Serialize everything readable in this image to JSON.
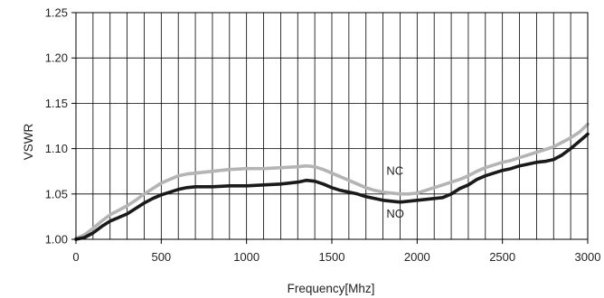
{
  "chart_data": {
    "type": "line",
    "title": "",
    "xlabel": "Frequency[Mhz]",
    "ylabel": "VSWR",
    "xlim": [
      0,
      3000
    ],
    "ylim": [
      1.0,
      1.25
    ],
    "x_ticks": [
      0,
      500,
      1000,
      1500,
      2000,
      2500,
      3000
    ],
    "y_ticks": [
      1.0,
      1.05,
      1.1,
      1.15,
      1.2,
      1.25
    ],
    "x_tick_labels": [
      "0",
      "500",
      "1000",
      "1500",
      "2000",
      "2500",
      "3000"
    ],
    "y_tick_labels": [
      "1.00",
      "1.05",
      "1.10",
      "1.15",
      "1.20",
      "1.25"
    ],
    "grid": true,
    "vertical_grid_step": 100,
    "legend": "none",
    "series": [
      {
        "name": "NC",
        "color": "#b4b4b4",
        "x": [
          0,
          50,
          100,
          150,
          200,
          250,
          300,
          350,
          400,
          450,
          500,
          550,
          600,
          650,
          700,
          800,
          900,
          1000,
          1100,
          1200,
          1300,
          1350,
          1400,
          1450,
          1500,
          1550,
          1600,
          1650,
          1700,
          1750,
          1800,
          1850,
          1900,
          1950,
          2000,
          2050,
          2100,
          2150,
          2200,
          2250,
          2300,
          2350,
          2400,
          2450,
          2500,
          2550,
          2600,
          2650,
          2700,
          2750,
          2800,
          2850,
          2900,
          2950,
          3000
        ],
        "values": [
          1.001,
          1.005,
          1.012,
          1.02,
          1.027,
          1.032,
          1.037,
          1.043,
          1.05,
          1.056,
          1.062,
          1.066,
          1.07,
          1.072,
          1.073,
          1.075,
          1.077,
          1.078,
          1.078,
          1.079,
          1.08,
          1.081,
          1.08,
          1.077,
          1.073,
          1.069,
          1.065,
          1.061,
          1.057,
          1.054,
          1.052,
          1.051,
          1.05,
          1.05,
          1.051,
          1.054,
          1.057,
          1.06,
          1.063,
          1.066,
          1.07,
          1.075,
          1.079,
          1.082,
          1.085,
          1.087,
          1.09,
          1.093,
          1.096,
          1.099,
          1.102,
          1.107,
          1.112,
          1.118,
          1.127
        ]
      },
      {
        "name": "NO",
        "color": "#1a1a1a",
        "x": [
          0,
          50,
          100,
          150,
          200,
          250,
          300,
          350,
          400,
          450,
          500,
          550,
          600,
          650,
          700,
          800,
          900,
          1000,
          1100,
          1200,
          1300,
          1350,
          1400,
          1450,
          1500,
          1550,
          1600,
          1650,
          1700,
          1750,
          1800,
          1850,
          1900,
          1950,
          2000,
          2050,
          2100,
          2150,
          2200,
          2250,
          2300,
          2350,
          2400,
          2450,
          2500,
          2550,
          2600,
          2650,
          2700,
          2750,
          2800,
          2850,
          2900,
          2950,
          3000
        ],
        "values": [
          1.0,
          1.002,
          1.007,
          1.014,
          1.02,
          1.024,
          1.028,
          1.034,
          1.04,
          1.045,
          1.049,
          1.052,
          1.055,
          1.057,
          1.058,
          1.058,
          1.059,
          1.059,
          1.06,
          1.061,
          1.063,
          1.065,
          1.064,
          1.061,
          1.057,
          1.054,
          1.052,
          1.05,
          1.047,
          1.045,
          1.043,
          1.042,
          1.041,
          1.042,
          1.043,
          1.044,
          1.045,
          1.046,
          1.05,
          1.056,
          1.06,
          1.066,
          1.07,
          1.073,
          1.076,
          1.078,
          1.081,
          1.083,
          1.085,
          1.086,
          1.088,
          1.093,
          1.1,
          1.108,
          1.116
        ]
      }
    ],
    "annotations": [
      {
        "text": "NC",
        "x": 1820,
        "y": 1.071
      },
      {
        "text": "NO",
        "x": 1820,
        "y": 1.024
      }
    ]
  }
}
